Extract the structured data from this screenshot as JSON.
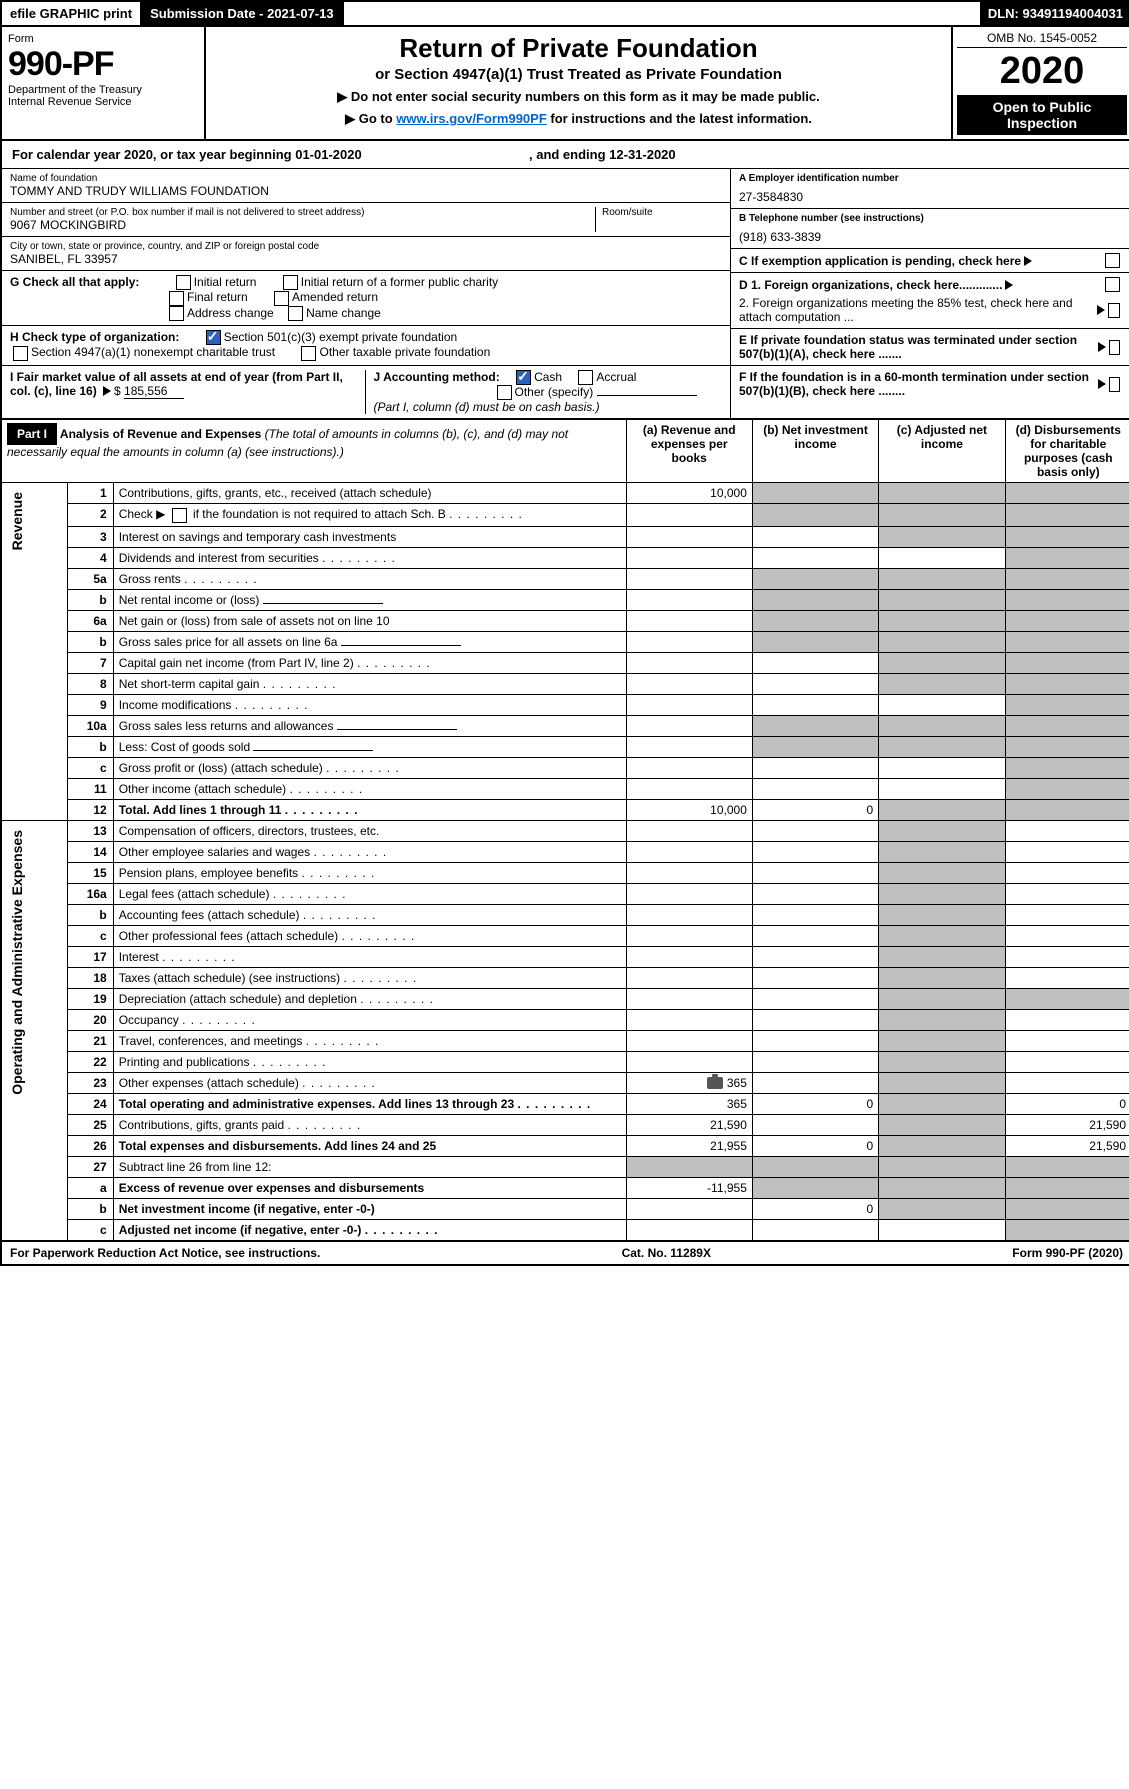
{
  "topbar": {
    "efile": "efile GRAPHIC print",
    "subdate_lbl": "Submission Date - 2021-07-13",
    "dln": "DLN: 93491194004031"
  },
  "header": {
    "form_word": "Form",
    "form_num": "990-PF",
    "dept": "Department of the Treasury",
    "irs": "Internal Revenue Service",
    "title": "Return of Private Foundation",
    "subtitle": "or Section 4947(a)(1) Trust Treated as Private Foundation",
    "instr1": "▶ Do not enter social security numbers on this form as it may be made public.",
    "instr2": "▶ Go to ",
    "instr_link": "www.irs.gov/Form990PF",
    "instr3": " for instructions and the latest information.",
    "omb": "OMB No. 1545-0052",
    "year": "2020",
    "open": "Open to Public Inspection"
  },
  "cal": {
    "text": "For calendar year 2020, or tax year beginning 01-01-2020",
    "ending": ", and ending 12-31-2020"
  },
  "info": {
    "name_lbl": "Name of foundation",
    "name": "TOMMY AND TRUDY WILLIAMS FOUNDATION",
    "addr_lbl": "Number and street (or P.O. box number if mail is not delivered to street address)",
    "addr": "9067 MOCKINGBIRD",
    "room_lbl": "Room/suite",
    "city_lbl": "City or town, state or province, country, and ZIP or foreign postal code",
    "city": "SANIBEL, FL  33957",
    "ein_lbl": "A Employer identification number",
    "ein": "27-3584830",
    "tel_lbl": "B Telephone number (see instructions)",
    "tel": "(918) 633-3839",
    "c_lbl": "C  If exemption application is pending, check here",
    "d1": "D 1. Foreign organizations, check here.............",
    "d2": "2. Foreign organizations meeting the 85% test, check here and attach computation ...",
    "e_lbl": "E  If private foundation status was terminated under section 507(b)(1)(A), check here .......",
    "f_lbl": "F  If the foundation is in a 60-month termination under section 507(b)(1)(B), check here ........"
  },
  "g": {
    "lbl": "G Check all that apply:",
    "opts": [
      "Initial return",
      "Initial return of a former public charity",
      "Final return",
      "Amended return",
      "Address change",
      "Name change"
    ]
  },
  "h": {
    "lbl": "H Check type of organization:",
    "o1": "Section 501(c)(3) exempt private foundation",
    "o2": "Section 4947(a)(1) nonexempt charitable trust",
    "o3": "Other taxable private foundation"
  },
  "i": {
    "lbl": "I Fair market value of all assets at end of year (from Part II, col. (c), line 16) ",
    "amt": "185,556"
  },
  "j": {
    "lbl": "J Accounting method:",
    "o1": "Cash",
    "o2": "Accrual",
    "o3": "Other (specify)",
    "note": "(Part I, column (d) must be on cash basis.)"
  },
  "part1": {
    "label": "Part I",
    "title": "Analysis of Revenue and Expenses",
    "note": "(The total of amounts in columns (b), (c), and (d) may not necessarily equal the amounts in column (a) (see instructions).)",
    "cols": [
      "(a)   Revenue and expenses per books",
      "(b)  Net investment income",
      "(c)  Adjusted net income",
      "(d)  Disbursements for charitable purposes (cash basis only)"
    ]
  },
  "sections": {
    "rev": "Revenue",
    "exp": "Operating and Administrative Expenses"
  },
  "lines": {
    "1": {
      "d": "Contributions, gifts, grants, etc., received (attach schedule)",
      "a": "10,000"
    },
    "2": {
      "d": "Check ▶",
      "d2": " if the foundation is not required to attach Sch. B"
    },
    "3": {
      "d": "Interest on savings and temporary cash investments"
    },
    "4": {
      "d": "Dividends and interest from securities"
    },
    "5a": {
      "d": "Gross rents"
    },
    "5b": {
      "d": "Net rental income or (loss)"
    },
    "6a": {
      "d": "Net gain or (loss) from sale of assets not on line 10"
    },
    "6b": {
      "d": "Gross sales price for all assets on line 6a"
    },
    "7": {
      "d": "Capital gain net income (from Part IV, line 2)"
    },
    "8": {
      "d": "Net short-term capital gain"
    },
    "9": {
      "d": "Income modifications"
    },
    "10a": {
      "d": "Gross sales less returns and allowances"
    },
    "10b": {
      "d": "Less: Cost of goods sold"
    },
    "10c": {
      "d": "Gross profit or (loss) (attach schedule)"
    },
    "11": {
      "d": "Other income (attach schedule)"
    },
    "12": {
      "d": "Total. Add lines 1 through 11",
      "a": "10,000",
      "b": "0"
    },
    "13": {
      "d": "Compensation of officers, directors, trustees, etc."
    },
    "14": {
      "d": "Other employee salaries and wages"
    },
    "15": {
      "d": "Pension plans, employee benefits"
    },
    "16a": {
      "d": "Legal fees (attach schedule)"
    },
    "16b": {
      "d": "Accounting fees (attach schedule)"
    },
    "16c": {
      "d": "Other professional fees (attach schedule)"
    },
    "17": {
      "d": "Interest"
    },
    "18": {
      "d": "Taxes (attach schedule) (see instructions)"
    },
    "19": {
      "d": "Depreciation (attach schedule) and depletion"
    },
    "20": {
      "d": "Occupancy"
    },
    "21": {
      "d": "Travel, conferences, and meetings"
    },
    "22": {
      "d": "Printing and publications"
    },
    "23": {
      "d": "Other expenses (attach schedule)",
      "a": "365"
    },
    "24": {
      "d": "Total operating and administrative expenses. Add lines 13 through 23",
      "a": "365",
      "b": "0",
      "dd": "0"
    },
    "25": {
      "d": "Contributions, gifts, grants paid",
      "a": "21,590",
      "dd": "21,590"
    },
    "26": {
      "d": "Total expenses and disbursements. Add lines 24 and 25",
      "a": "21,955",
      "b": "0",
      "dd": "21,590"
    },
    "27": {
      "d": "Subtract line 26 from line 12:"
    },
    "27a": {
      "d": "Excess of revenue over expenses and disbursements",
      "a": "-11,955"
    },
    "27b": {
      "d": "Net investment income (if negative, enter -0-)",
      "b": "0"
    },
    "27c": {
      "d": "Adjusted net income (if negative, enter -0-)"
    }
  },
  "foot": {
    "left": "For Paperwork Reduction Act Notice, see instructions.",
    "mid": "Cat. No. 11289X",
    "right": "Form 990-PF (2020)"
  }
}
